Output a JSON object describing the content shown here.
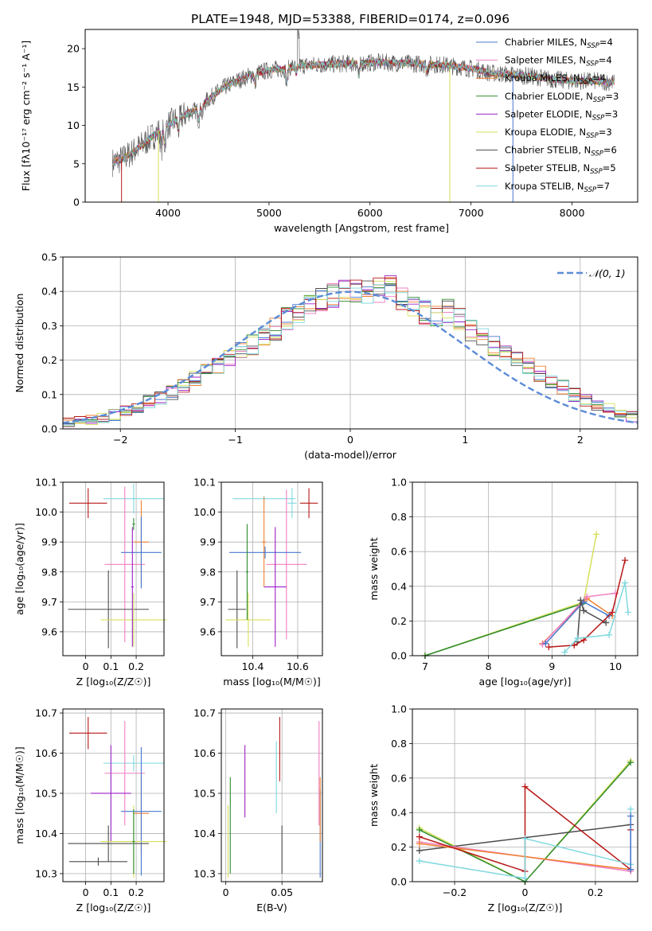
{
  "figure": {
    "title": "PLATE=1948, MJD=53388, FIBERID=0174, z=0.096"
  },
  "chart_data": [
    {
      "id": "spectrum",
      "type": "line",
      "title": "PLATE=1948, MJD=53388, FIBERID=0174, z=0.096",
      "xlabel": "wavelength [Angstrom, rest frame]",
      "ylabel": "Flux [fλ10⁻¹⁷ erg cm⁻² s⁻¹ A⁻¹]",
      "xlim": [
        3180,
        8650
      ],
      "ylim": [
        0,
        22.5
      ],
      "xticks": [
        4000,
        5000,
        6000,
        7000,
        8000
      ],
      "yticks": [
        0,
        5,
        10,
        15,
        20
      ],
      "grid": false,
      "legend_position": "top-right",
      "continuum": {
        "x": [
          3450,
          3550,
          3700,
          3850,
          3950,
          4050,
          4200,
          4300,
          4400,
          4550,
          4700,
          4850,
          5000,
          5150,
          5300,
          5500,
          5700,
          5900,
          6100,
          6300,
          6500,
          6700,
          6900,
          7050,
          7200,
          7400,
          7600,
          7800,
          8000,
          8200,
          8400
        ],
        "y": [
          5.2,
          5.6,
          7.0,
          8.6,
          9.6,
          10.5,
          11.6,
          12.1,
          13.4,
          14.9,
          15.9,
          16.7,
          17.2,
          17.4,
          17.8,
          17.9,
          18.0,
          18.1,
          18.2,
          18.1,
          18.0,
          17.9,
          17.6,
          17.3,
          16.8,
          16.6,
          16.4,
          16.0,
          15.8,
          15.8,
          15.6
        ]
      },
      "drops": [
        {
          "x": 3540,
          "to": 0,
          "series": "Salpeter STELIB"
        },
        {
          "x": 3905,
          "to": 0,
          "series": "Kroupa ELODIE"
        },
        {
          "x": 6790,
          "to": 0,
          "series": "Kroupa ELODIE"
        },
        {
          "x": 7415,
          "to": 0,
          "series": "Chabrier MILES"
        }
      ],
      "series": [
        {
          "name": "Chabrier MILES, N",
          "sub": "SSP",
          "suffix": "=4",
          "color": "#4878cf"
        },
        {
          "name": "Salpeter MILES, N",
          "sub": "SSP",
          "suffix": "=4",
          "color": "#f07fc0"
        },
        {
          "name": "Kroupa MILES, N",
          "sub": "SSP",
          "suffix": "=4",
          "color": "#f08030"
        },
        {
          "name": "Chabrier ELODIE, N",
          "sub": "SSP",
          "suffix": "=3",
          "color": "#2e8b2e"
        },
        {
          "name": "Salpeter ELODIE, N",
          "sub": "SSP",
          "suffix": "=3",
          "color": "#9b20c8"
        },
        {
          "name": "Kroupa ELODIE, N",
          "sub": "SSP",
          "suffix": "=3",
          "color": "#d6e05a"
        },
        {
          "name": "Chabrier STELIB, N",
          "sub": "SSP",
          "suffix": "=6",
          "color": "#4c4c4c"
        },
        {
          "name": "Salpeter STELIB, N",
          "sub": "SSP",
          "suffix": "=5",
          "color": "#b81818"
        },
        {
          "name": "Kroupa STELIB, N",
          "sub": "SSP",
          "suffix": "=7",
          "color": "#7fd8de"
        }
      ]
    },
    {
      "id": "residuals",
      "type": "histogram",
      "xlabel": "(data-model)/error",
      "ylabel": "Normed distribution",
      "xlim": [
        -2.5,
        2.5
      ],
      "ylim": [
        0,
        0.5
      ],
      "xticks": [
        -2,
        -1,
        0,
        1,
        2
      ],
      "yticks": [
        0.0,
        0.1,
        0.2,
        0.3,
        0.4,
        0.5
      ],
      "grid": true,
      "bin_edges_start": -2.5,
      "bin_width": 0.1,
      "base_density": [
        0.018,
        0.022,
        0.027,
        0.032,
        0.04,
        0.052,
        0.066,
        0.078,
        0.09,
        0.105,
        0.125,
        0.145,
        0.165,
        0.185,
        0.205,
        0.225,
        0.245,
        0.265,
        0.29,
        0.32,
        0.345,
        0.365,
        0.375,
        0.385,
        0.395,
        0.4,
        0.395,
        0.405,
        0.415,
        0.38,
        0.365,
        0.34,
        0.33,
        0.345,
        0.32,
        0.285,
        0.265,
        0.24,
        0.215,
        0.2,
        0.18,
        0.16,
        0.14,
        0.12,
        0.1,
        0.085,
        0.072,
        0.06,
        0.045,
        0.035
      ],
      "legend": [
        {
          "label": "𝒩(0, 1)",
          "style": "dashed",
          "color": "#5b8bd6"
        }
      ]
    },
    {
      "id": "age-vs-Z",
      "type": "errorbar",
      "xlabel": "Z [log₁₀(Z/Z☉)]",
      "ylabel": "age  [log₁₀(age/yr)]",
      "xlim": [
        -0.09,
        0.31
      ],
      "ylim": [
        9.52,
        10.1
      ],
      "xticks": [
        0.0,
        0.1,
        0.2
      ],
      "yticks": [
        9.6,
        9.7,
        9.8,
        9.9,
        10.0,
        10.1
      ],
      "grid": true,
      "points": [
        {
          "color": "#b81818",
          "x": 0.01,
          "xerr": 0.075,
          "y": 10.03,
          "yerr": 0.05
        },
        {
          "color": "#7fd8de",
          "x": 0.19,
          "xerr": 0.12,
          "y": 10.045,
          "yerr": 0.05
        },
        {
          "color": "#f07fc0",
          "x": 0.155,
          "xerr": 0.08,
          "y": 9.825,
          "yerr": 0.26
        },
        {
          "color": "#f08030",
          "x": 0.22,
          "xerr": 0.03,
          "y": 9.9,
          "yerr": 0.14
        },
        {
          "color": "#4878cf",
          "x": 0.22,
          "xerr": 0.08,
          "y": 9.865,
          "yerr": 0.12
        },
        {
          "color": "#4c4c4c",
          "x": 0.09,
          "xerr": 0.16,
          "y": 9.675,
          "yerr": 0.13
        },
        {
          "color": "#d6e05a",
          "x": 0.19,
          "xerr": 0.13,
          "y": 9.64,
          "yerr": 0.09
        },
        {
          "color": "#2e8b2e",
          "x": 0.19,
          "xerr": 0.005,
          "y": 9.96,
          "yerr": 0.02
        },
        {
          "color": "#9b20c8",
          "x": 0.185,
          "xerr": 0.005,
          "y": 9.75,
          "yerr": 0.2
        }
      ]
    },
    {
      "id": "age-vs-mass",
      "type": "errorbar",
      "xlabel": "mass [log₁₀(M/M☉)]",
      "ylabel": "",
      "xlim": [
        10.26,
        10.71
      ],
      "ylim": [
        9.52,
        10.1
      ],
      "xticks": [
        10.4,
        10.6
      ],
      "yticks": [
        9.6,
        9.7,
        9.8,
        9.9,
        10.0,
        10.1
      ],
      "grid": true,
      "points": [
        {
          "color": "#b81818",
          "x": 10.65,
          "xerr": 0.04,
          "y": 10.03,
          "yerr": 0.05
        },
        {
          "color": "#7fd8de",
          "x": 10.575,
          "xerr": 0.02,
          "y": 10.03,
          "yerr": 0.05
        },
        {
          "color": "#7fd8de",
          "x": 10.45,
          "xerr": 0.14,
          "y": 10.045,
          "yerr": 0.01
        },
        {
          "color": "#f07fc0",
          "x": 10.55,
          "xerr": 0.09,
          "y": 9.825,
          "yerr": 0.25
        },
        {
          "color": "#f08030",
          "x": 10.45,
          "xerr": 0.01,
          "y": 9.9,
          "yerr": 0.15
        },
        {
          "color": "#4878cf",
          "x": 10.455,
          "xerr": 0.16,
          "y": 9.865,
          "yerr": 0.02
        },
        {
          "color": "#9b20c8",
          "x": 10.5,
          "xerr": 0.05,
          "y": 9.75,
          "yerr": 0.2
        },
        {
          "color": "#4c4c4c",
          "x": 10.33,
          "xerr": 0.04,
          "y": 9.675,
          "yerr": 0.13
        },
        {
          "color": "#d6e05a",
          "x": 10.38,
          "xerr": 0.1,
          "y": 9.64,
          "yerr": 0.09
        },
        {
          "color": "#2e8b2e",
          "x": 10.375,
          "xerr": 0.005,
          "y": 9.8,
          "yerr": 0.16
        }
      ]
    },
    {
      "id": "massweight-vs-age",
      "type": "line",
      "xlabel": "age  [log₁₀(age/yr)]",
      "ylabel": "mass weight",
      "xlim": [
        6.8,
        10.35
      ],
      "ylim": [
        0,
        1.0
      ],
      "xticks": [
        7,
        8,
        9,
        10
      ],
      "yticks": [
        0.0,
        0.2,
        0.4,
        0.6,
        0.8,
        1.0
      ],
      "grid": true,
      "series": [
        {
          "color": "#d6e05a",
          "x": [
            7.0,
            9.5,
            9.7
          ],
          "y": [
            0.0,
            0.31,
            0.7
          ]
        },
        {
          "color": "#2e8b2e",
          "x": [
            7.0,
            9.48
          ],
          "y": [
            0.0,
            0.3
          ]
        },
        {
          "color": "#f08030",
          "x": [
            8.85,
            9.55,
            9.95
          ],
          "y": [
            0.07,
            0.33,
            0.23
          ]
        },
        {
          "color": "#f07fc0",
          "x": [
            8.85,
            9.55,
            10.0
          ],
          "y": [
            0.065,
            0.34,
            0.36
          ]
        },
        {
          "color": "#4878cf",
          "x": [
            8.9,
            9.5,
            9.9
          ],
          "y": [
            0.07,
            0.31,
            0.23
          ]
        },
        {
          "color": "#4c4c4c",
          "x": [
            9.4,
            9.45,
            9.5,
            9.85
          ],
          "y": [
            0.08,
            0.32,
            0.26,
            0.19
          ]
        },
        {
          "color": "#b81818",
          "x": [
            8.95,
            9.35,
            9.5,
            9.95,
            10.15
          ],
          "y": [
            0.05,
            0.06,
            0.09,
            0.25,
            0.55
          ]
        },
        {
          "color": "#7fd8de",
          "x": [
            9.2,
            9.4,
            9.9,
            10.15,
            10.2
          ],
          "y": [
            0.02,
            0.1,
            0.12,
            0.42,
            0.25
          ]
        }
      ]
    },
    {
      "id": "mass-vs-Z",
      "type": "errorbar",
      "xlabel": "Z [log₁₀(Z/Z☉)]",
      "ylabel": "mass [log₁₀(M/M☉)]",
      "xlim": [
        -0.09,
        0.31
      ],
      "ylim": [
        10.28,
        10.71
      ],
      "xticks": [
        0.0,
        0.1,
        0.2
      ],
      "yticks": [
        10.3,
        10.4,
        10.5,
        10.6,
        10.7
      ],
      "grid": true,
      "points": [
        {
          "color": "#b81818",
          "x": 0.01,
          "xerr": 0.075,
          "y": 10.65,
          "yerr": 0.04
        },
        {
          "color": "#7fd8de",
          "x": 0.19,
          "xerr": 0.12,
          "y": 10.575,
          "yerr": 0.02
        },
        {
          "color": "#f07fc0",
          "x": 0.155,
          "xerr": 0.08,
          "y": 10.55,
          "yerr": 0.13
        },
        {
          "color": "#f08030",
          "x": 0.22,
          "xerr": 0.03,
          "y": 10.45,
          "yerr": 0.1
        },
        {
          "color": "#4878cf",
          "x": 0.22,
          "xerr": 0.08,
          "y": 10.455,
          "yerr": 0.16
        },
        {
          "color": "#9b20c8",
          "x": 0.1,
          "xerr": 0.08,
          "y": 10.5,
          "yerr": 0.12
        },
        {
          "color": "#4c4c4c",
          "x": 0.09,
          "xerr": 0.16,
          "y": 10.375,
          "yerr": 0.045
        },
        {
          "color": "#4c4c4c",
          "x": 0.05,
          "xerr": 0.115,
          "y": 10.33,
          "yerr": 0.01
        },
        {
          "color": "#d6e05a",
          "x": 0.19,
          "xerr": 0.13,
          "y": 10.38,
          "yerr": 0.09
        },
        {
          "color": "#2e8b2e",
          "x": 0.19,
          "xerr": 0.005,
          "y": 10.38,
          "yerr": 0.08
        }
      ]
    },
    {
      "id": "mass-vs-ebv",
      "type": "errorbar",
      "xlabel": "E(B-V)",
      "ylabel": "",
      "xlim": [
        -0.004,
        0.086
      ],
      "ylim": [
        10.28,
        10.71
      ],
      "xticks": [
        0.0,
        0.05
      ],
      "yticks": [
        10.3,
        10.4,
        10.5,
        10.6,
        10.7
      ],
      "grid": true,
      "points": [
        {
          "color": "#d6e05a",
          "x": 0.002,
          "y": 10.38,
          "yerr": 0.09
        },
        {
          "color": "#2e8b2e",
          "x": 0.004,
          "y": 10.42,
          "yerr": 0.12
        },
        {
          "color": "#9b20c8",
          "x": 0.017,
          "y": 10.53,
          "yerr": 0.09
        },
        {
          "color": "#7fd8de",
          "x": 0.045,
          "y": 10.54,
          "yerr": 0.09
        },
        {
          "color": "#b81818",
          "x": 0.048,
          "y": 10.61,
          "yerr": 0.08
        },
        {
          "color": "#4c4c4c",
          "x": 0.05,
          "y": 10.36,
          "yerr": 0.06
        },
        {
          "color": "#f07fc0",
          "x": 0.083,
          "y": 10.55,
          "yerr": 0.13
        },
        {
          "color": "#4878cf",
          "x": 0.084,
          "y": 10.4,
          "yerr": 0.11
        },
        {
          "color": "#f08030",
          "x": 0.084,
          "y": 10.46,
          "yerr": 0.08
        }
      ]
    },
    {
      "id": "massweight-vs-Z",
      "type": "line",
      "xlabel": "Z [log₁₀(Z/Z☉)]",
      "ylabel": "mass weight",
      "xlim": [
        -0.32,
        0.32
      ],
      "ylim": [
        0,
        1.0
      ],
      "xticks": [
        -0.2,
        0.0,
        0.2
      ],
      "yticks": [
        0.0,
        0.2,
        0.4,
        0.6,
        0.8,
        1.0
      ],
      "grid": true,
      "series": [
        {
          "color": "#d6e05a",
          "x": [
            -0.3,
            0.0,
            0.3
          ],
          "y": [
            0.31,
            0.0,
            0.7
          ]
        },
        {
          "color": "#2e8b2e",
          "x": [
            -0.3,
            0.0,
            0.3
          ],
          "y": [
            0.3,
            0.0,
            0.69
          ]
        },
        {
          "color": "#4c4c4c",
          "x": [
            -0.3,
            0.3
          ],
          "y": [
            0.18,
            0.33
          ]
        },
        {
          "color": "#f07fc0",
          "x": [
            -0.3,
            0.3
          ],
          "y": [
            0.23,
            0.06
          ]
        },
        {
          "color": "#f08030",
          "x": [
            -0.3,
            0.3
          ],
          "y": [
            0.22,
            0.07
          ]
        },
        {
          "color": "#b81818",
          "x": [
            -0.3,
            0.0,
            0.0,
            0.3,
            0.3
          ],
          "y": [
            0.26,
            0.06,
            0.55,
            0.07,
            0.3
          ]
        },
        {
          "color": "#7fd8de",
          "x": [
            -0.3,
            0.0,
            0.0,
            0.3,
            0.3
          ],
          "y": [
            0.12,
            0.02,
            0.25,
            0.1,
            0.42
          ]
        },
        {
          "color": "#4878cf",
          "x": [
            0.3,
            0.3
          ],
          "y": [
            0.07,
            0.38
          ]
        }
      ]
    }
  ]
}
